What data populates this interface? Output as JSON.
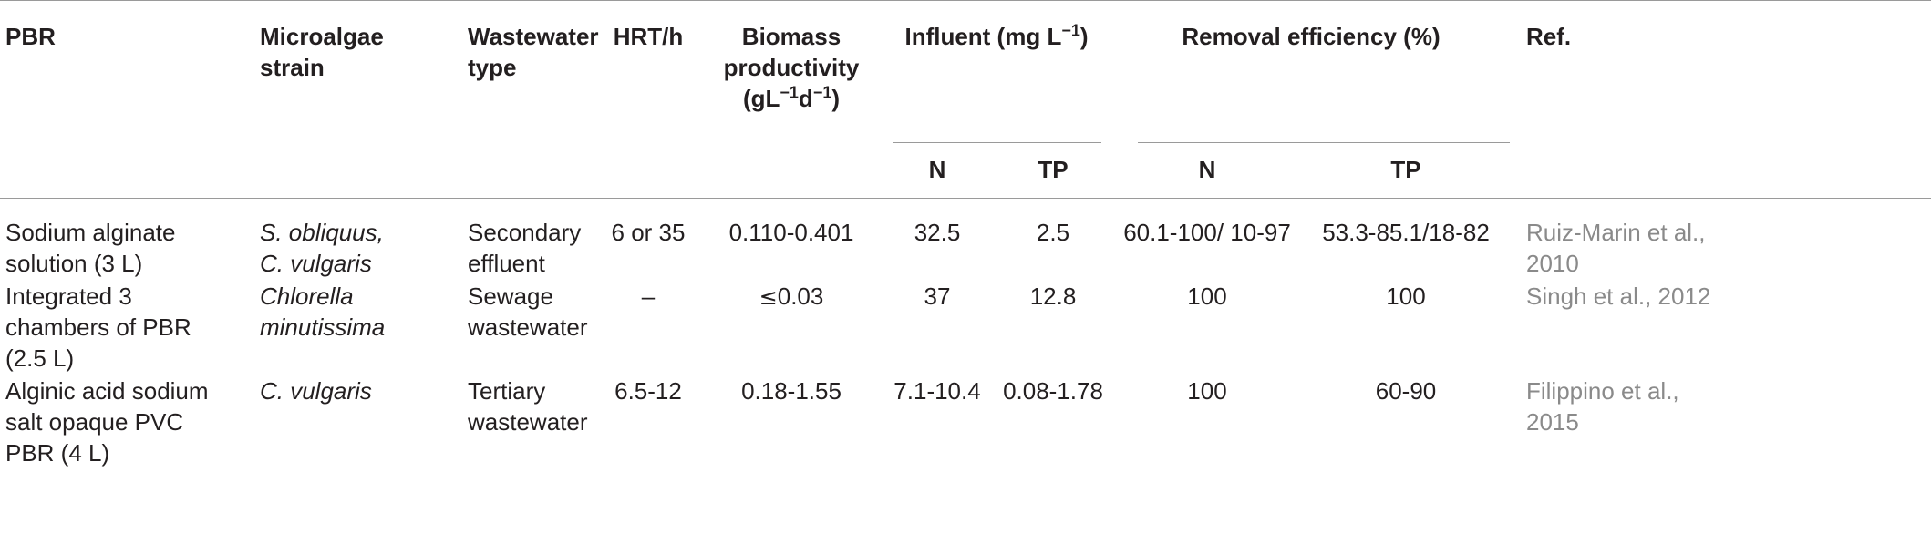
{
  "header": {
    "pbr": "PBR",
    "strain_line1": "Microalgae",
    "strain_line2": "strain",
    "wastewater_line1": "Wastewater",
    "wastewater_line2": "type",
    "hrt": "HRT/h",
    "biomass_line1": "Biomass",
    "biomass_line2": "productivity",
    "biomass_line3_pre": "(gL",
    "biomass_sup1": "−1",
    "biomass_mid": "d",
    "biomass_sup2": "−1",
    "biomass_post": ")",
    "influent_pre": "Influent (mg L",
    "influent_sup": "−1",
    "influent_post": ")",
    "removal": "Removal efficiency (%)",
    "ref": "Ref.",
    "sub_n": "N",
    "sub_tp": "TP",
    "sub_n2": "N",
    "sub_tp2": "TP"
  },
  "rows": [
    {
      "pbr_lines": [
        "Sodium alginate",
        "solution (3 L)"
      ],
      "strain_lines": [
        "S. obliquus,",
        "C. vulgaris"
      ],
      "wastewater_lines": [
        "Secondary",
        "effluent"
      ],
      "hrt": "6 or 35",
      "biomass": "0.110-0.401",
      "inf_n": "32.5",
      "inf_tp": "2.5",
      "rem_n": "60.1-100/ 10-97",
      "rem_tp": "53.3-85.1/18-82",
      "ref_lines": [
        "Ruiz-Marin et al.,",
        "2010"
      ]
    },
    {
      "pbr_lines": [
        "Integrated 3",
        "chambers of PBR",
        "(2.5 L)"
      ],
      "strain_lines": [
        "Chlorella",
        "minutissima"
      ],
      "wastewater_lines": [
        "Sewage",
        "wastewater"
      ],
      "hrt": "–",
      "biomass_prefix": "≤",
      "biomass": "0.03",
      "inf_n": "37",
      "inf_tp": "12.8",
      "rem_n": "100",
      "rem_tp": "100",
      "ref_lines": [
        "Singh et al., 2012"
      ]
    },
    {
      "pbr_lines": [
        "Alginic acid sodium",
        "salt opaque PVC",
        "PBR (4 L)"
      ],
      "strain_lines": [
        "C. vulgaris"
      ],
      "wastewater_lines": [
        "Tertiary",
        "wastewater"
      ],
      "hrt": "6.5-12",
      "biomass": "0.18-1.55",
      "inf_n": "7.1-10.4",
      "inf_tp": "0.08-1.78",
      "rem_n": "100",
      "rem_tp": "60-90",
      "ref_lines": [
        "Filippino et al.,",
        "2015"
      ]
    }
  ]
}
